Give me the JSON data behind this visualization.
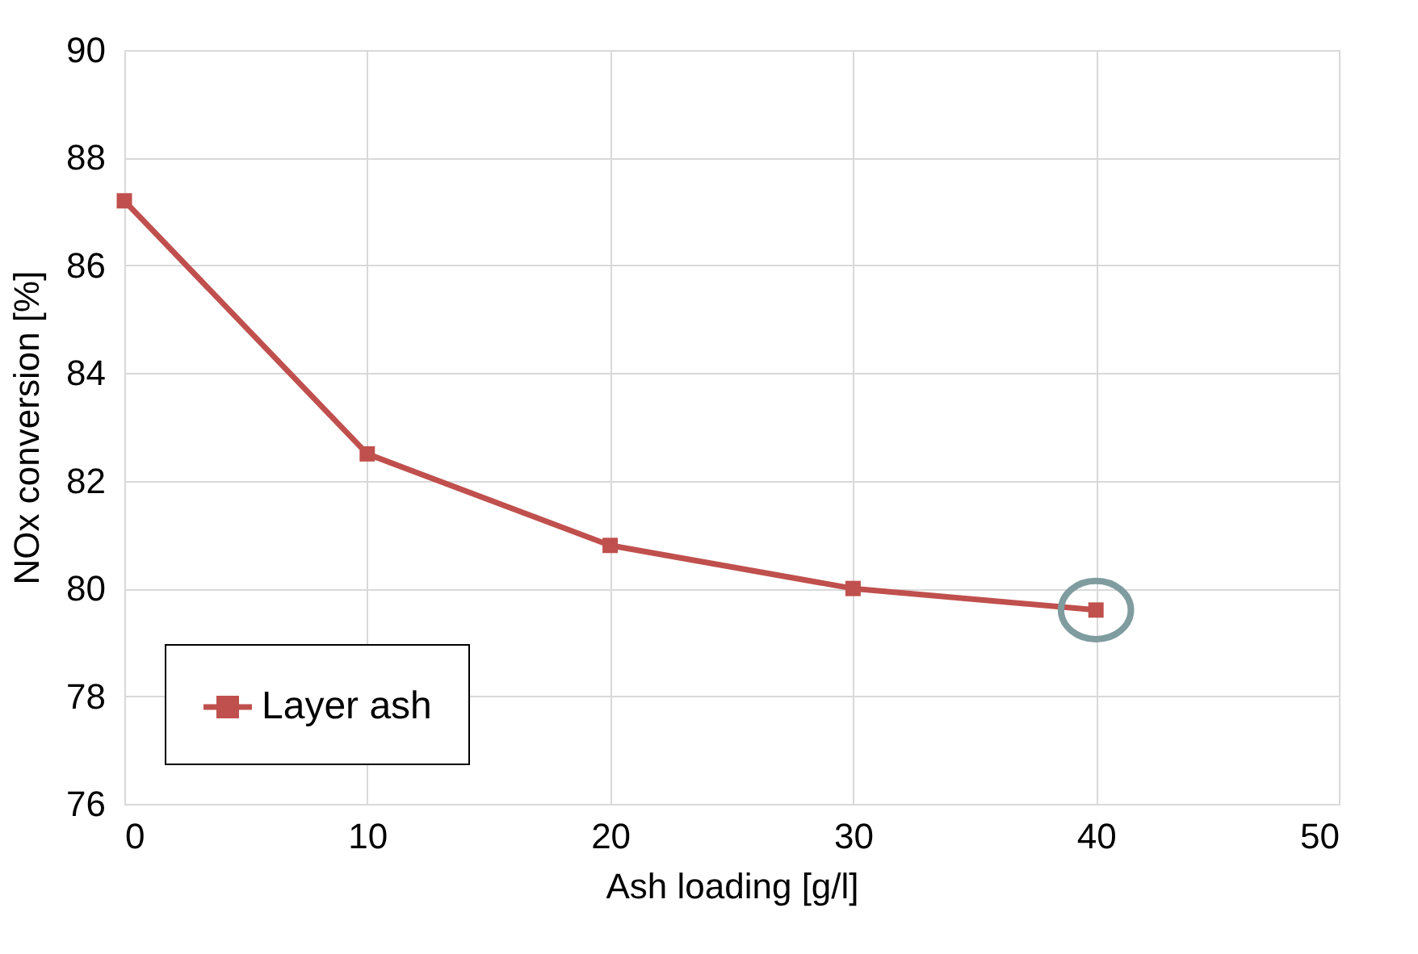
{
  "chart_data": {
    "type": "line",
    "xlabel": "Ash loading [g/l]",
    "ylabel": "NOx conversion [%]",
    "x": [
      0,
      10,
      20,
      30,
      40
    ],
    "series": [
      {
        "name": "Layer ash",
        "color": "#c0504d",
        "values": [
          87.2,
          82.5,
          80.8,
          80.0,
          79.6
        ]
      }
    ],
    "xlim": [
      0,
      50
    ],
    "xticks": [
      0,
      10,
      20,
      30,
      40,
      50
    ],
    "ylim": [
      76,
      90
    ],
    "yticks": [
      76,
      78,
      80,
      82,
      84,
      86,
      88,
      90
    ],
    "grid": true,
    "legend": "bottom left",
    "marker": "square",
    "line_style": "solid"
  }
}
